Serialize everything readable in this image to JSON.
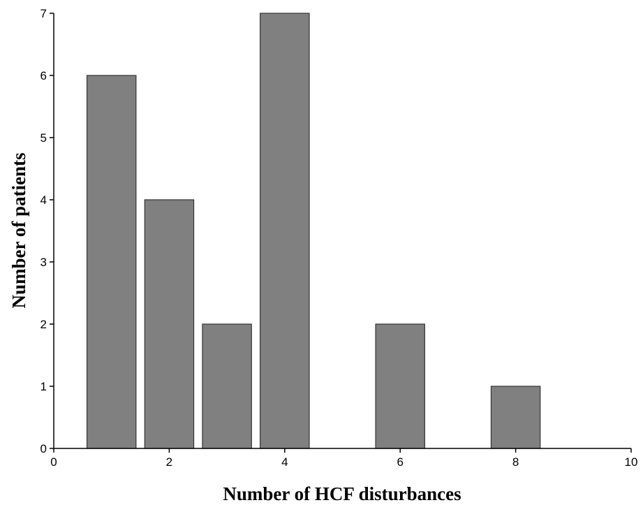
{
  "chart_data": {
    "type": "bar",
    "title": "",
    "xlabel": "Number of HCF disturbances",
    "ylabel": "Number of patients",
    "x": [
      1,
      2,
      3,
      4,
      6,
      8
    ],
    "values": [
      6,
      4,
      2,
      7,
      2,
      1
    ],
    "xlim": [
      0,
      10
    ],
    "ylim": [
      0,
      7
    ],
    "xticks": [
      0,
      2,
      4,
      6,
      8,
      10
    ],
    "yticks": [
      0,
      1,
      2,
      3,
      4,
      5,
      6,
      7
    ],
    "bar_width": 0.85,
    "grid": false,
    "legend": "none",
    "bar_color": "#808080",
    "bar_edge_color": "#333333"
  }
}
